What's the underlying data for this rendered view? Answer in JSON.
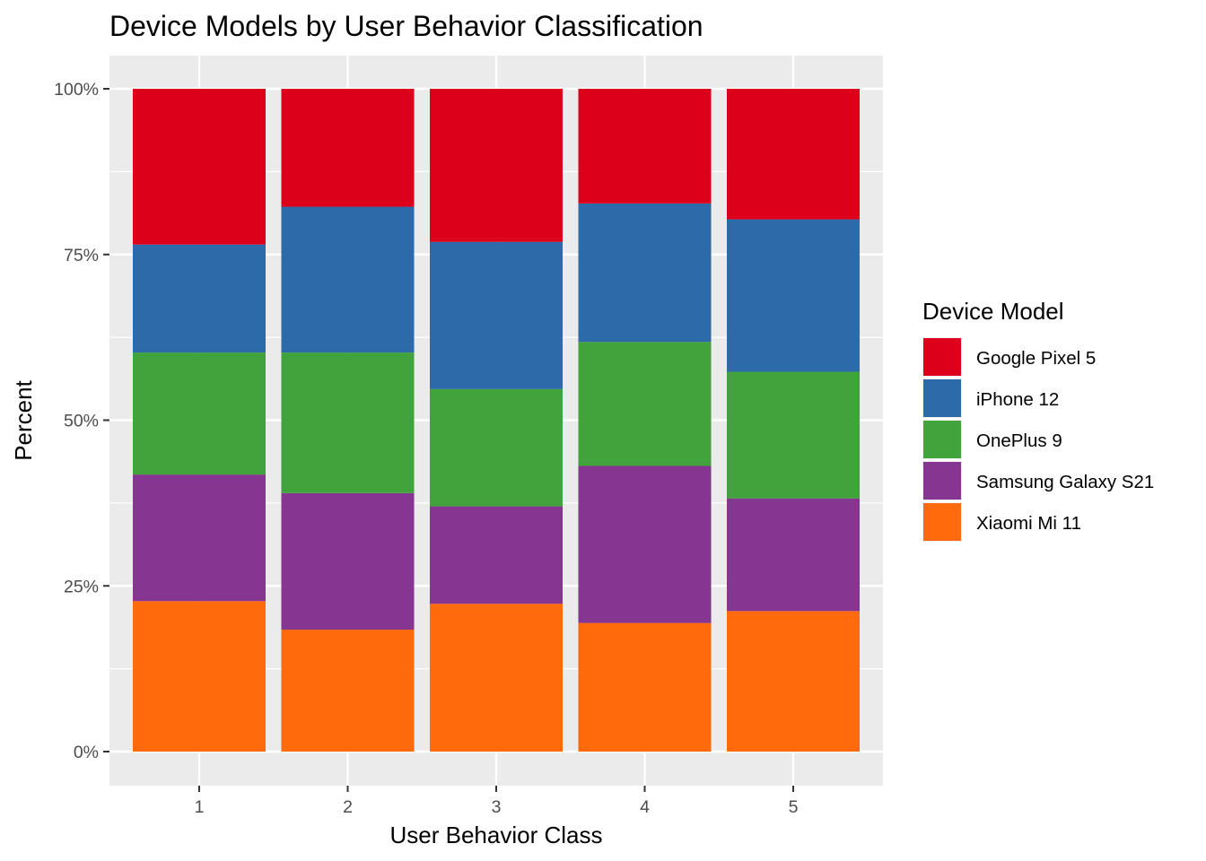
{
  "chart_data": {
    "type": "bar",
    "stacked": true,
    "title": "Device Models by User Behavior Classification",
    "xlabel": "User Behavior Class",
    "ylabel": "Percent",
    "categories": [
      "1",
      "2",
      "3",
      "4",
      "5"
    ],
    "ylim": [
      0,
      1
    ],
    "y_ticks": [
      0,
      0.25,
      0.5,
      0.75,
      1.0
    ],
    "y_tick_labels": [
      "0%",
      "25%",
      "50%",
      "75%",
      "100%"
    ],
    "grid": true,
    "legend": {
      "title": "Device Model",
      "placement": "right"
    },
    "series": [
      {
        "name": "Xiaomi Mi 11",
        "color": "#FF6A0D",
        "values": [
          0.227,
          0.184,
          0.223,
          0.194,
          0.212
        ]
      },
      {
        "name": "Samsung Galaxy S21",
        "color": "#863591",
        "values": [
          0.191,
          0.206,
          0.147,
          0.237,
          0.17
        ]
      },
      {
        "name": "OnePlus 9",
        "color": "#41A33B",
        "values": [
          0.184,
          0.212,
          0.177,
          0.187,
          0.191
        ]
      },
      {
        "name": "iPhone 12",
        "color": "#2D6AAA",
        "values": [
          0.163,
          0.22,
          0.222,
          0.209,
          0.23
        ]
      },
      {
        "name": "Google Pixel 5",
        "color": "#DC001B",
        "values": [
          0.235,
          0.178,
          0.231,
          0.173,
          0.197
        ]
      }
    ],
    "legend_order": [
      "Google Pixel 5",
      "iPhone 12",
      "OnePlus 9",
      "Samsung Galaxy S21",
      "Xiaomi Mi 11"
    ]
  }
}
